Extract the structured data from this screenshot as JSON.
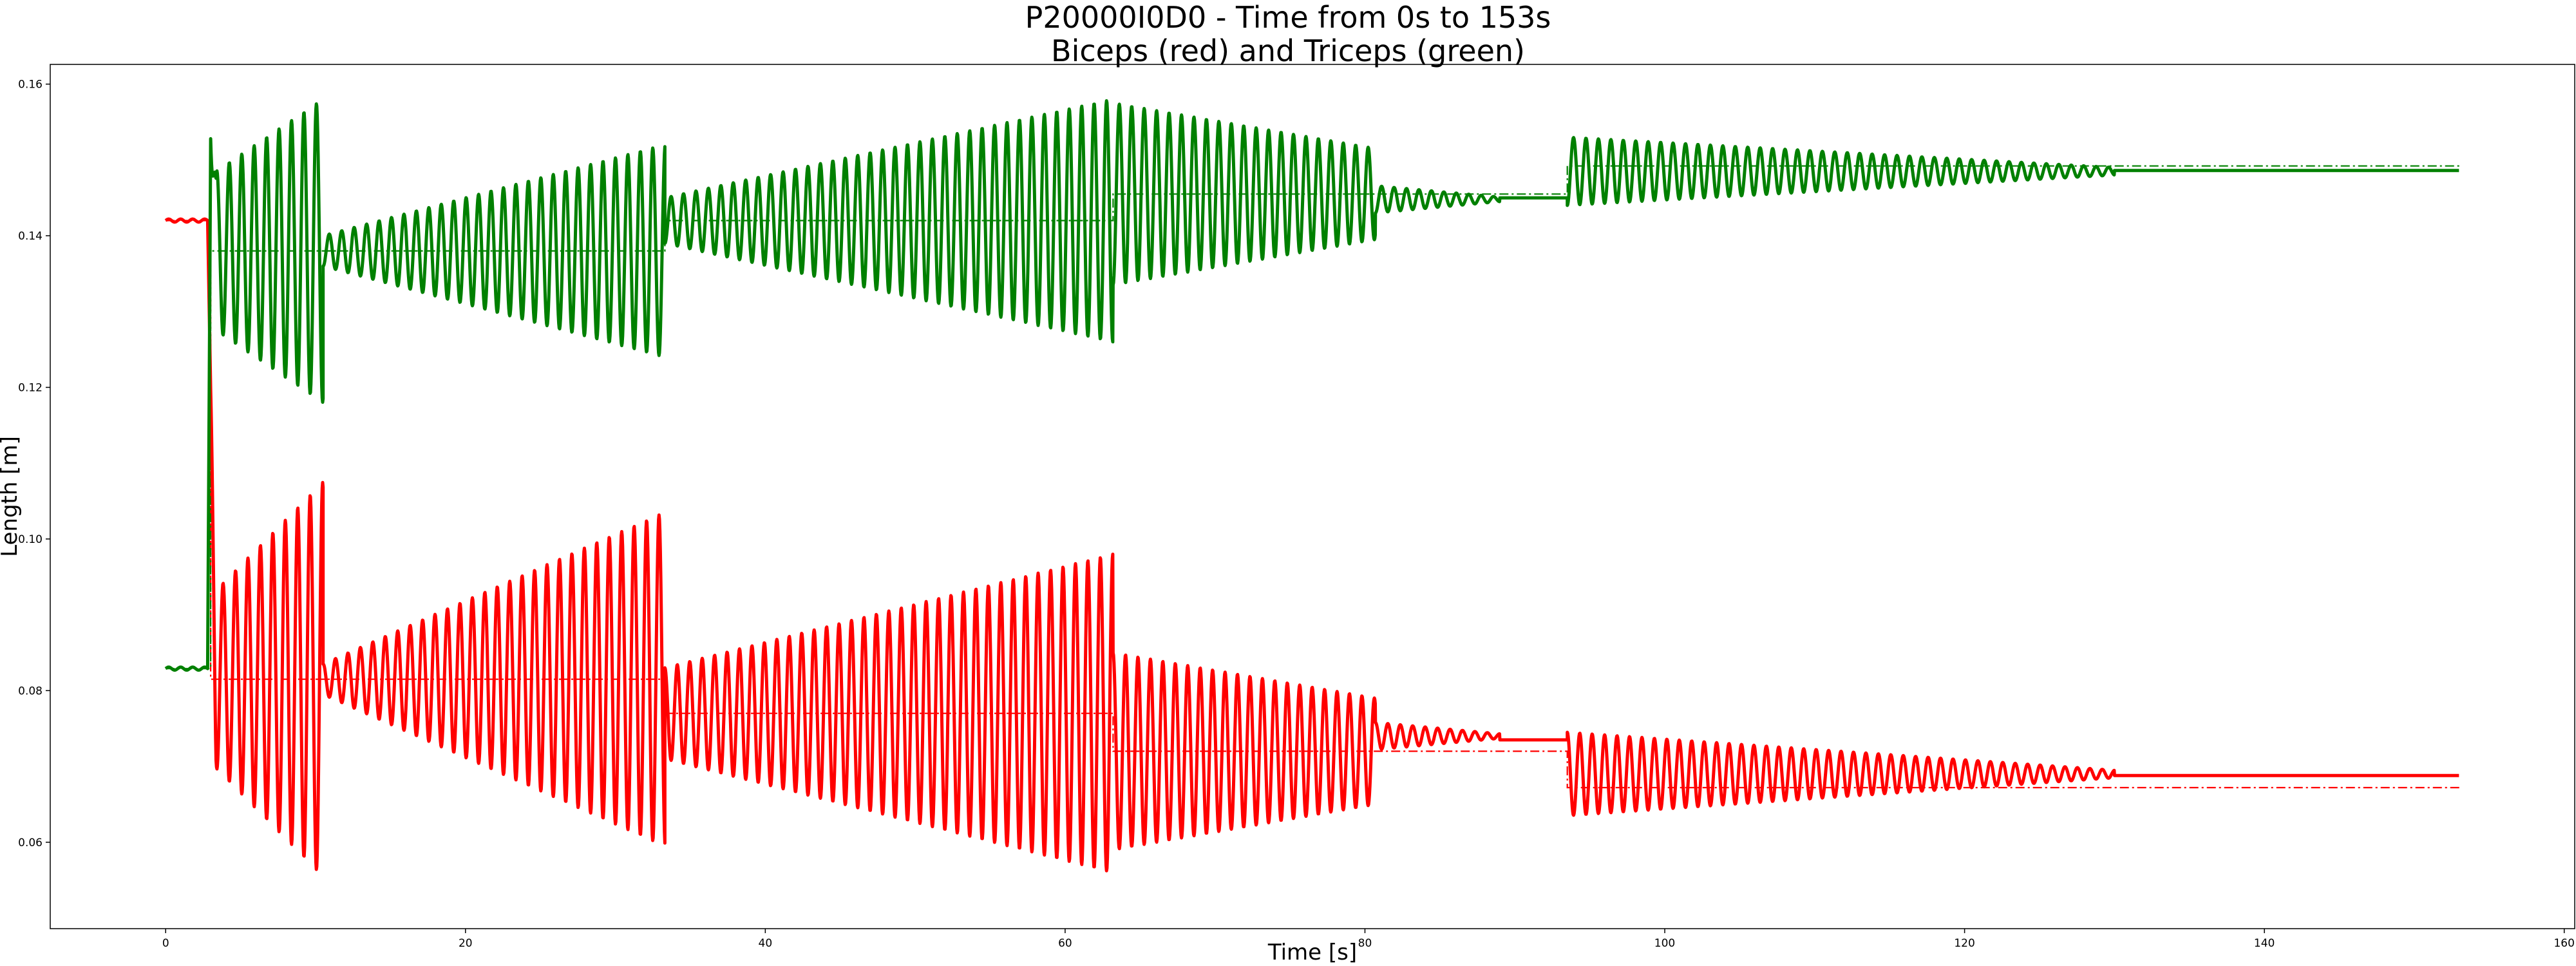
{
  "chart_data": {
    "type": "line",
    "title": "P20000I0D0 - Time from 0s to 153s",
    "subtitle": "Biceps (red) and Triceps (green)",
    "xlabel": "Time [s]",
    "ylabel": "Length [m]",
    "xlim": [
      -7.7,
      160.7
    ],
    "ylim": [
      0.0486,
      0.1626
    ],
    "xticks": [
      0,
      20,
      40,
      60,
      80,
      100,
      120,
      140,
      160
    ],
    "xtick_labels": [
      "0",
      "20",
      "40",
      "60",
      "80",
      "100",
      "120",
      "140",
      "160"
    ],
    "yticks": [
      0.06,
      0.08,
      0.1,
      0.12,
      0.14,
      0.16
    ],
    "ytick_labels": [
      "0.06",
      "0.08",
      "0.10",
      "0.12",
      "0.14",
      "0.16"
    ],
    "grid": false,
    "colors": {
      "biceps": "#ff0000",
      "triceps": "#008000"
    },
    "series": [
      {
        "name": "Biceps (red)",
        "color": "#ff0000",
        "style": "solid",
        "initial": {
          "t_end": 2.8,
          "value": 0.142
        },
        "segments": [
          {
            "t_start": 3.0,
            "t_end": 10.5,
            "center": 0.0815,
            "period": 0.83,
            "amp_start": 0.011,
            "amp_end": 0.026,
            "phase": 1
          },
          {
            "t_start": 10.5,
            "t_end": 33.3,
            "center": 0.0815,
            "period": 0.83,
            "amp_start": 0.002,
            "amp_end": 0.022,
            "phase": 1
          },
          {
            "t_start": 33.3,
            "t_end": 63.2,
            "center": 0.077,
            "period": 0.83,
            "amp_start": 0.006,
            "amp_end": 0.021,
            "phase": 1
          },
          {
            "t_start": 63.2,
            "t_end": 80.7,
            "center": 0.072,
            "period": 0.83,
            "amp_start": 0.013,
            "amp_end": 0.007,
            "phase": 1
          },
          {
            "t_start": 80.7,
            "t_end": 89.0,
            "center": 0.074,
            "period": 0.83,
            "amp_start": 0.0018,
            "amp_end": 0.0003,
            "phase": 1
          },
          {
            "t_start": 89.0,
            "t_end": 93.5,
            "center": 0.0735,
            "period": 0.83,
            "amp_start": 0.0,
            "amp_end": 0.0,
            "phase": 1
          },
          {
            "t_start": 93.5,
            "t_end": 130.0,
            "center": 0.069,
            "period": 0.83,
            "amp_start": 0.0055,
            "amp_end": 0.0005,
            "phase": 1
          },
          {
            "t_start": 130.0,
            "t_end": 153.0,
            "center": 0.0688,
            "period": 0.83,
            "amp_start": 0.0,
            "amp_end": 0.0,
            "phase": 1
          }
        ]
      },
      {
        "name": "Triceps (green)",
        "color": "#008000",
        "style": "solid",
        "initial": {
          "t_end": 2.8,
          "value": 0.0829
        },
        "segments": [
          {
            "t_start": 3.0,
            "t_end": 10.5,
            "center": 0.138,
            "period": 0.83,
            "amp_start": 0.01,
            "amp_end": 0.02,
            "phase": -1
          },
          {
            "t_start": 10.5,
            "t_end": 33.3,
            "center": 0.138,
            "period": 0.83,
            "amp_start": 0.002,
            "amp_end": 0.014,
            "phase": -1
          },
          {
            "t_start": 33.3,
            "t_end": 63.2,
            "center": 0.142,
            "period": 0.83,
            "amp_start": 0.003,
            "amp_end": 0.016,
            "phase": -1
          },
          {
            "t_start": 63.2,
            "t_end": 80.7,
            "center": 0.1455,
            "period": 0.83,
            "amp_start": 0.012,
            "amp_end": 0.006,
            "phase": -1
          },
          {
            "t_start": 80.7,
            "t_end": 89.0,
            "center": 0.1448,
            "period": 0.83,
            "amp_start": 0.0018,
            "amp_end": 0.0003,
            "phase": -1
          },
          {
            "t_start": 89.0,
            "t_end": 93.5,
            "center": 0.145,
            "period": 0.83,
            "amp_start": 0.0,
            "amp_end": 0.0,
            "phase": -1
          },
          {
            "t_start": 93.5,
            "t_end": 130.0,
            "center": 0.1485,
            "period": 0.83,
            "amp_start": 0.0045,
            "amp_end": 0.0005,
            "phase": -1
          },
          {
            "t_start": 130.0,
            "t_end": 153.0,
            "center": 0.1486,
            "period": 0.83,
            "amp_start": 0.0,
            "amp_end": 0.0,
            "phase": -1
          }
        ]
      }
    ],
    "reference_lines": [
      {
        "name": "Biceps reference",
        "color": "#ff0000",
        "style": "dashdot",
        "steps": [
          {
            "t_start": 0,
            "t_end": 3.0,
            "value": 0.142
          },
          {
            "t_start": 3.0,
            "t_end": 33.3,
            "value": 0.0815
          },
          {
            "t_start": 33.3,
            "t_end": 63.2,
            "value": 0.077
          },
          {
            "t_start": 63.2,
            "t_end": 93.5,
            "value": 0.072
          },
          {
            "t_start": 93.5,
            "t_end": 153.0,
            "value": 0.0672
          }
        ]
      },
      {
        "name": "Triceps reference",
        "color": "#008000",
        "style": "dashdot",
        "steps": [
          {
            "t_start": 0,
            "t_end": 3.0,
            "value": 0.0829
          },
          {
            "t_start": 3.0,
            "t_end": 33.3,
            "value": 0.138
          },
          {
            "t_start": 33.3,
            "t_end": 63.2,
            "value": 0.142
          },
          {
            "t_start": 63.2,
            "t_end": 93.5,
            "value": 0.1455
          },
          {
            "t_start": 93.5,
            "t_end": 153.0,
            "value": 0.1492
          }
        ]
      }
    ]
  }
}
